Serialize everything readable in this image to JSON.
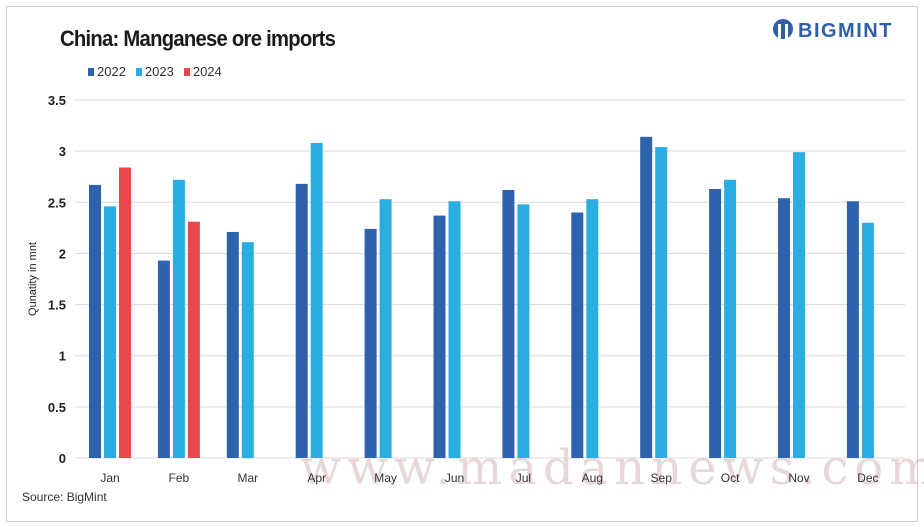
{
  "header": {
    "title": "China: Manganese ore imports",
    "logo_text": "BIGMINT"
  },
  "source": "Source: BigMint",
  "watermark": "www.madannews.com",
  "colors": {
    "2022": "#2e62ad",
    "2023": "#2aaee2",
    "2024": "#e8474b"
  },
  "chart_data": {
    "type": "bar",
    "title": "China: Manganese ore imports",
    "xlabel": "",
    "ylabel": "Qunatity in mnt",
    "ylim": [
      0,
      3.5
    ],
    "yticks": [
      "0",
      "0.5",
      "1",
      "1.5",
      "2",
      "2.5",
      "3",
      "3.5"
    ],
    "grid": true,
    "legend_position": "top-left",
    "categories": [
      "Jan",
      "Feb",
      "Mar",
      "Apr",
      "May",
      "Jun",
      "Jul",
      "Aug",
      "Sep",
      "Oct",
      "Nov",
      "Dec"
    ],
    "series": [
      {
        "name": "2022",
        "values": [
          2.67,
          1.93,
          2.21,
          2.68,
          2.24,
          2.37,
          2.62,
          2.4,
          3.14,
          2.63,
          2.54,
          2.51
        ]
      },
      {
        "name": "2023",
        "values": [
          2.46,
          2.72,
          2.11,
          3.08,
          2.53,
          2.51,
          2.48,
          2.53,
          3.04,
          2.72,
          2.99,
          2.3
        ]
      },
      {
        "name": "2024",
        "values": [
          2.84,
          2.31,
          null,
          null,
          null,
          null,
          null,
          null,
          null,
          null,
          null,
          null
        ]
      }
    ]
  }
}
